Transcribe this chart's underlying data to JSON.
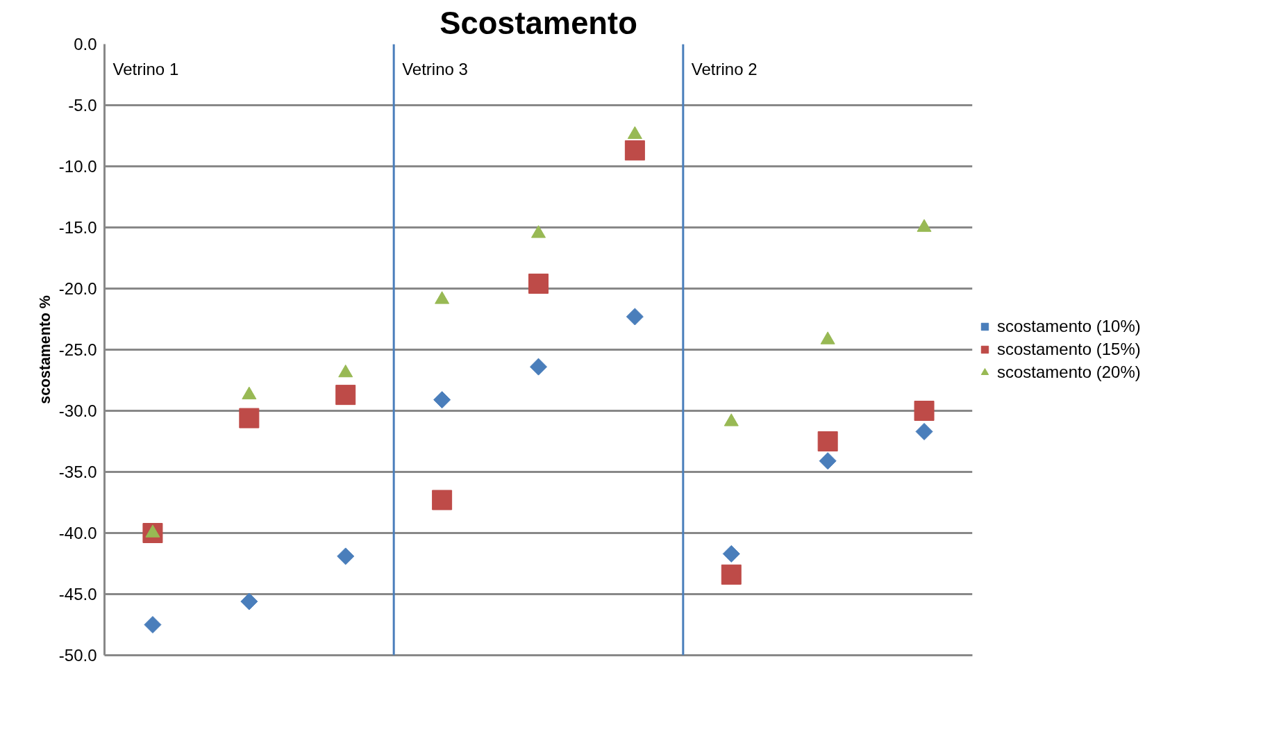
{
  "chart_data": {
    "type": "scatter",
    "title": "Scostamento",
    "ylabel": "scostamento %",
    "categories": [
      null,
      null,
      null,
      null,
      null,
      null,
      null,
      null,
      null
    ],
    "ylim": [
      -50,
      0
    ],
    "yticks": [
      {
        "value": 0,
        "label": "0.0"
      },
      {
        "value": -5,
        "label": "-5.0"
      },
      {
        "value": -10,
        "label": "-10.0"
      },
      {
        "value": -15,
        "label": "-15.0"
      },
      {
        "value": -20,
        "label": "-20.0"
      },
      {
        "value": -25,
        "label": "-25.0"
      },
      {
        "value": -30,
        "label": "-30.0"
      },
      {
        "value": -35,
        "label": "-35.0"
      },
      {
        "value": -40,
        "label": "-40.0"
      },
      {
        "value": -45,
        "label": "-45.0"
      },
      {
        "value": -50,
        "label": "-50.0"
      }
    ],
    "tick_labels": "y",
    "grid": "y",
    "legend": "right",
    "series": [
      {
        "name": "scostamento (10%)",
        "color": "#4a7ebb",
        "marker": "diamond",
        "values": [
          -47.5,
          -45.6,
          -41.9,
          -29.1,
          -26.4,
          -22.3,
          -41.7,
          -34.1,
          -31.7
        ]
      },
      {
        "name": "scostamento (15%)",
        "color": "#be4b48",
        "marker": "square",
        "values": [
          -40.0,
          -30.6,
          -28.7,
          -37.3,
          -19.6,
          -8.7,
          -43.4,
          -32.5,
          -30.0
        ]
      },
      {
        "name": "scostamento (20%)",
        "color": "#98b954",
        "marker": "triangle",
        "values": [
          -40.0,
          -28.7,
          -26.9,
          -20.9,
          -15.5,
          -7.4,
          -30.9,
          -24.2,
          -15.0
        ]
      }
    ],
    "annotations": [
      "Vetrino 1",
      "Vetrino 3",
      "Vetrino 2"
    ]
  }
}
